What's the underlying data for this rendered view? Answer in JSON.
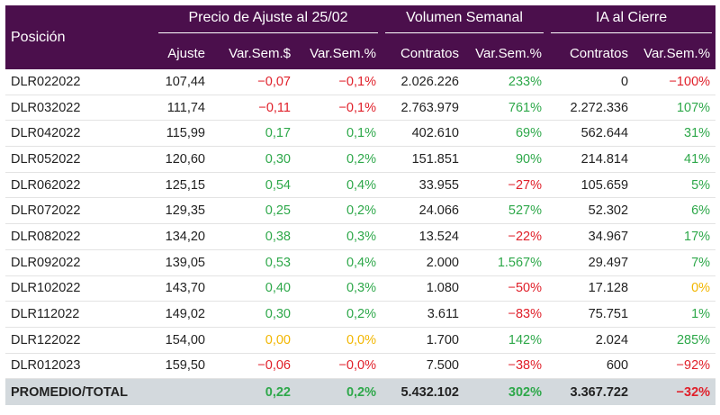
{
  "header": {
    "position": "Posición",
    "group_price": "Precio de Ajuste al 25/02",
    "group_volume": "Volumen Semanal",
    "group_oi": "IA al Cierre",
    "sub": [
      "Ajuste",
      "Var.Sem.$",
      "Var.Sem.%",
      "Contratos",
      "Var.Sem.%",
      "Contratos",
      "Var.Sem.%"
    ]
  },
  "colors": {
    "header_bg": "#4b0f4c",
    "positive": "#2ea84a",
    "negative": "#e0202a",
    "zero": "#f2b600",
    "total_bg": "#d3d9dd"
  },
  "rows": [
    {
      "name": "DLR022022",
      "ajuste": "107,44",
      "var_pesos": "-0,07",
      "var_pct": "-0,1%",
      "vol": "2.026.226",
      "vol_var": "233%",
      "ia": "0",
      "ia_var": "-100%"
    },
    {
      "name": "DLR032022",
      "ajuste": "111,74",
      "var_pesos": "-0,11",
      "var_pct": "-0,1%",
      "vol": "2.763.979",
      "vol_var": "761%",
      "ia": "2.272.336",
      "ia_var": "107%"
    },
    {
      "name": "DLR042022",
      "ajuste": "115,99",
      "var_pesos": "0,17",
      "var_pct": "0,1%",
      "vol": "402.610",
      "vol_var": "69%",
      "ia": "562.644",
      "ia_var": "31%"
    },
    {
      "name": "DLR052022",
      "ajuste": "120,60",
      "var_pesos": "0,30",
      "var_pct": "0,2%",
      "vol": "151.851",
      "vol_var": "90%",
      "ia": "214.814",
      "ia_var": "41%"
    },
    {
      "name": "DLR062022",
      "ajuste": "125,15",
      "var_pesos": "0,54",
      "var_pct": "0,4%",
      "vol": "33.955",
      "vol_var": "-27%",
      "ia": "105.659",
      "ia_var": "5%"
    },
    {
      "name": "DLR072022",
      "ajuste": "129,35",
      "var_pesos": "0,25",
      "var_pct": "0,2%",
      "vol": "24.066",
      "vol_var": "527%",
      "ia": "52.302",
      "ia_var": "6%"
    },
    {
      "name": "DLR082022",
      "ajuste": "134,20",
      "var_pesos": "0,38",
      "var_pct": "0,3%",
      "vol": "13.524",
      "vol_var": "-22%",
      "ia": "34.967",
      "ia_var": "17%"
    },
    {
      "name": "DLR092022",
      "ajuste": "139,05",
      "var_pesos": "0,53",
      "var_pct": "0,4%",
      "vol": "2.000",
      "vol_var": "1.567%",
      "ia": "29.497",
      "ia_var": "7%"
    },
    {
      "name": "DLR102022",
      "ajuste": "143,70",
      "var_pesos": "0,40",
      "var_pct": "0,3%",
      "vol": "1.080",
      "vol_var": "-50%",
      "ia": "17.128",
      "ia_var": "0%"
    },
    {
      "name": "DLR112022",
      "ajuste": "149,02",
      "var_pesos": "0,30",
      "var_pct": "0,2%",
      "vol": "3.611",
      "vol_var": "-83%",
      "ia": "75.751",
      "ia_var": "1%"
    },
    {
      "name": "DLR122022",
      "ajuste": "154,00",
      "var_pesos": "0,00",
      "var_pct": "0,0%",
      "vol": "1.700",
      "vol_var": "142%",
      "ia": "2.024",
      "ia_var": "285%"
    },
    {
      "name": "DLR012023",
      "ajuste": "159,50",
      "var_pesos": "-0,06",
      "var_pct": "-0,0%",
      "vol": "7.500",
      "vol_var": "-38%",
      "ia": "600",
      "ia_var": "-92%"
    }
  ],
  "total": {
    "name": "PROMEDIO/TOTAL",
    "ajuste": "",
    "var_pesos": "0,22",
    "var_pct": "0,2%",
    "vol": "5.432.102",
    "vol_var": "302%",
    "ia": "3.367.722",
    "ia_var": "-32%"
  }
}
